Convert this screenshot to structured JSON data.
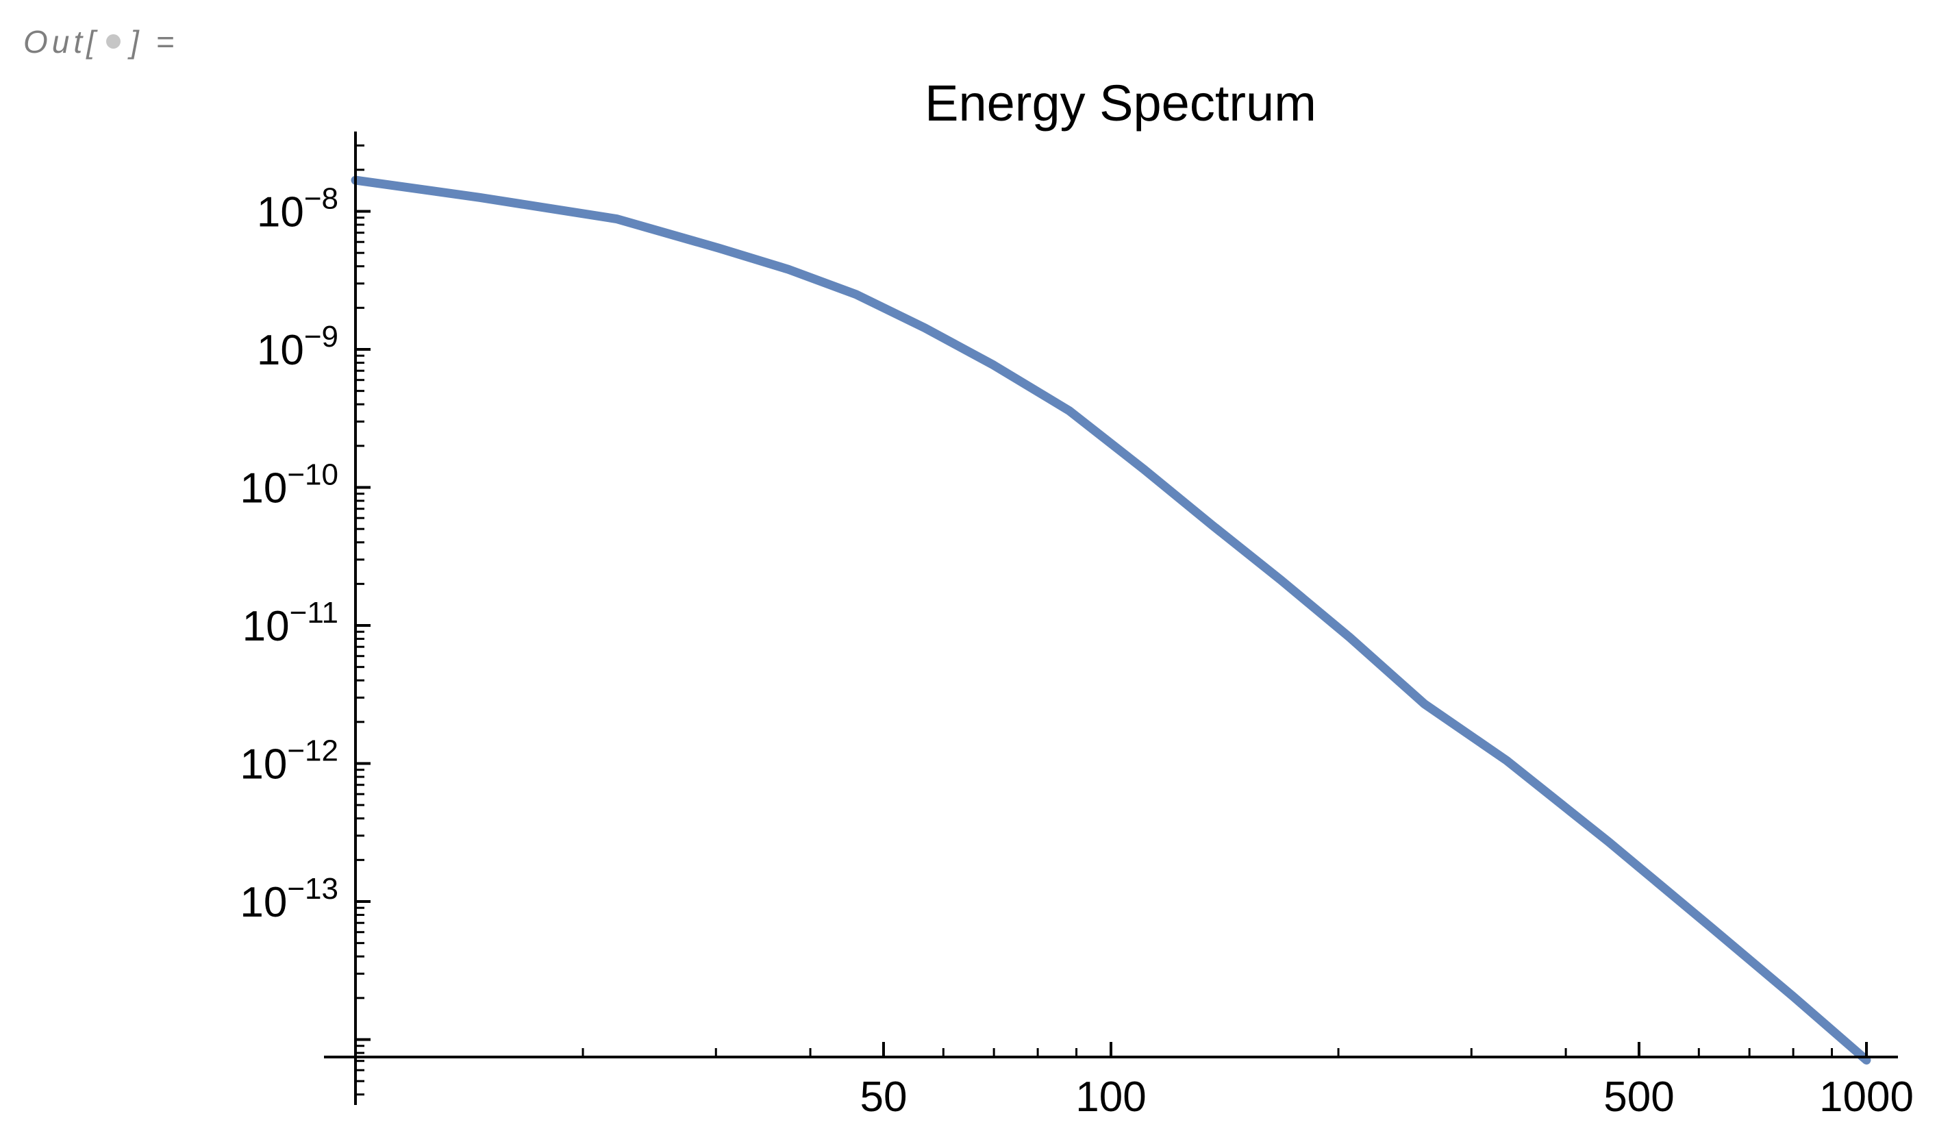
{
  "cell_label": {
    "open": "Out[",
    "close": "] =",
    "bullet_icon": "filled-circle"
  },
  "colors": {
    "background": "#ffffff",
    "curve": "#6386bb",
    "axis": "#000000",
    "title": "#000000",
    "cell_label_text": "#7f7f7f",
    "cell_label_bullet": "#c6c6c6"
  },
  "chart_data": {
    "type": "line",
    "title": "Energy Spectrum",
    "xlabel": "",
    "ylabel": "",
    "x_scale": "log",
    "y_scale": "log",
    "xlim": [
      10,
      1000
    ],
    "ylim": [
      3.4e-15,
      3.8e-08
    ],
    "grid": false,
    "legend_position": "none",
    "x_major_ticks": [
      {
        "value": 50,
        "label": "50"
      },
      {
        "value": 100,
        "label": "100"
      },
      {
        "value": 500,
        "label": "500"
      },
      {
        "value": 1000,
        "label": "1000"
      }
    ],
    "x_minor_ticks": [
      20,
      30,
      40,
      60,
      70,
      80,
      90,
      200,
      300,
      400,
      600,
      700,
      800,
      900
    ],
    "y_major_ticks": [
      {
        "value": 1e-08,
        "base": "10",
        "exp": "−8"
      },
      {
        "value": 1e-09,
        "base": "10",
        "exp": "−9"
      },
      {
        "value": 1e-10,
        "base": "10",
        "exp": "−10"
      },
      {
        "value": 1e-11,
        "base": "10",
        "exp": "−11"
      },
      {
        "value": 1e-12,
        "base": "10",
        "exp": "−12"
      },
      {
        "value": 1e-13,
        "base": "10",
        "exp": "−13"
      },
      {
        "value": 1e-14,
        "base": "",
        "exp": ""
      }
    ],
    "y_minor_ticks": [
      3e-08,
      2e-08,
      9e-09,
      8e-09,
      7e-09,
      6e-09,
      5e-09,
      4e-09,
      3e-09,
      2e-09,
      9e-10,
      8e-10,
      7e-10,
      6e-10,
      5e-10,
      4e-10,
      3e-10,
      2e-10,
      9e-11,
      8e-11,
      7e-11,
      6e-11,
      5e-11,
      4e-11,
      3e-11,
      2e-11,
      9e-12,
      8e-12,
      7e-12,
      6e-12,
      5e-12,
      4e-12,
      3e-12,
      2e-12,
      9e-13,
      8e-13,
      7e-13,
      6e-13,
      5e-13,
      4e-13,
      3e-13,
      2e-13,
      9e-14,
      8e-14,
      7e-14,
      6e-14,
      5e-14,
      4e-14,
      3e-14,
      2e-14,
      9e-15,
      8e-15,
      7e-15,
      6e-15,
      5e-15,
      4e-15
    ],
    "series": [
      {
        "name": "energy spectrum",
        "color": "#6386bb",
        "points": [
          [
            10,
            1.68e-08
          ],
          [
            14.6,
            1.26e-08
          ],
          [
            22.2,
            8.8e-09
          ],
          [
            30.3,
            5.4e-09
          ],
          [
            37.4,
            3.8e-09
          ],
          [
            46,
            2.5e-09
          ],
          [
            56.7,
            1.43e-09
          ],
          [
            69.9,
            7.7e-10
          ],
          [
            88,
            3.6e-10
          ],
          [
            110.6,
            1.35e-10
          ],
          [
            136.3,
            5.3e-11
          ],
          [
            167.9,
            2.13e-11
          ],
          [
            207,
            8.2e-12
          ],
          [
            260,
            2.7e-12
          ],
          [
            334,
            1.05e-12
          ],
          [
            456,
            2.7e-13
          ],
          [
            625,
            6.4e-14
          ],
          [
            800,
            2.05e-14
          ],
          [
            1000,
            7.1e-15
          ]
        ]
      }
    ]
  }
}
